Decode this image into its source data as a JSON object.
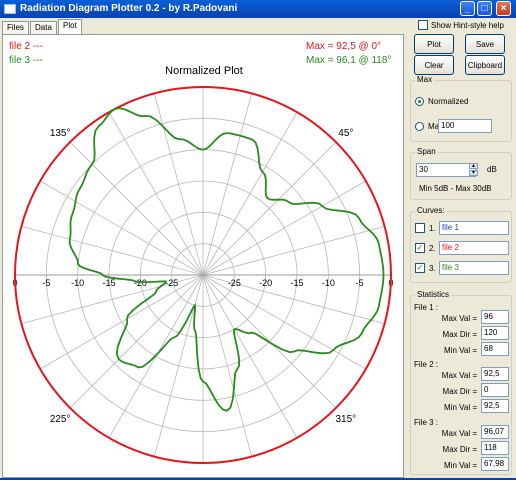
{
  "window": {
    "title": "Radiation Diagram Plotter 0.2  -  by R.Padovani",
    "icon": "app-window-icon",
    "minimize": "_",
    "maximize": "□",
    "close": "×"
  },
  "tabs": [
    {
      "label": "Files"
    },
    {
      "label": "Data"
    },
    {
      "label": "Plot"
    }
  ],
  "hint": {
    "label": "Show Hint-style help",
    "checked": false
  },
  "plot": {
    "title": "Normalized Plot",
    "legend": [
      {
        "label": "file 2   ---",
        "color": "#e8141b",
        "max_text": "Max = 92,5 @ 0°"
      },
      {
        "label": "file 3   ---",
        "color": "#2a8a1f",
        "max_text": "Max = 96,1 @ 118°"
      }
    ],
    "angle_labels": [
      "45°",
      "135°",
      "225°",
      "315°"
    ],
    "db_labels_left": [
      "0",
      "-5",
      "-10",
      "-15",
      "-20",
      "-25"
    ],
    "db_labels_right": [
      "-25",
      "-20",
      "-15",
      "-10",
      "-5",
      "0"
    ]
  },
  "chart_data": {
    "type": "polar line",
    "title": "Normalized Plot",
    "radial_axis": {
      "unit": "dB",
      "ticks": [
        0,
        -5,
        -10,
        -15,
        -20,
        -25
      ],
      "range": [
        -30,
        0
      ]
    },
    "angular_axis": {
      "unit": "deg",
      "labels": [
        45,
        135,
        225,
        315
      ],
      "grid_step": 15
    },
    "series": [
      {
        "name": "file 2",
        "color": "#e8141b",
        "points": [
          [
            0,
            0
          ],
          [
            90,
            0
          ],
          [
            180,
            0
          ],
          [
            270,
            0
          ]
        ]
      },
      {
        "name": "file 3",
        "color": "#2a8a1f",
        "points": [
          [
            0,
            -1.2
          ],
          [
            10,
            -1.5
          ],
          [
            20,
            -3.5
          ],
          [
            30,
            -8
          ],
          [
            40,
            -12
          ],
          [
            50,
            -14
          ],
          [
            60,
            -11
          ],
          [
            70,
            -7
          ],
          [
            80,
            -7
          ],
          [
            90,
            -10
          ],
          [
            100,
            -8
          ],
          [
            110,
            -3
          ],
          [
            118,
            0
          ],
          [
            125,
            -1
          ],
          [
            135,
            -5
          ],
          [
            145,
            -6
          ],
          [
            155,
            -7
          ],
          [
            165,
            -8
          ],
          [
            175,
            -10
          ],
          [
            180,
            -14
          ],
          [
            185,
            -19
          ],
          [
            190,
            -24
          ],
          [
            200,
            -22
          ],
          [
            210,
            -16
          ],
          [
            225,
            -11
          ],
          [
            235,
            -12
          ],
          [
            245,
            -19
          ],
          [
            255,
            -25
          ],
          [
            262,
            -21
          ],
          [
            270,
            -13
          ],
          [
            280,
            -8
          ],
          [
            290,
            -14
          ],
          [
            300,
            -20
          ],
          [
            310,
            -18
          ],
          [
            320,
            -11
          ],
          [
            330,
            -6
          ],
          [
            340,
            -3
          ],
          [
            350,
            -1.5
          ],
          [
            360,
            -1.2
          ]
        ]
      }
    ]
  },
  "buttons": {
    "plot": "Plot",
    "save": "Save",
    "clear": "Clear",
    "clipboard": "Clipboard"
  },
  "max_group": {
    "label": "Max",
    "normalized": "Normalized",
    "max": "Max",
    "max_value": "100",
    "selected": "Normalized"
  },
  "span_group": {
    "label": "Span",
    "value": "30",
    "unit": "dB",
    "range_text": "Min 5dB  -  Max 30dB"
  },
  "curves_group": {
    "label": "Curves:",
    "items": [
      {
        "num": "1.",
        "name": "file 1",
        "checked": false,
        "color": "#1d3ec9"
      },
      {
        "num": "2.",
        "name": "file 2",
        "checked": true,
        "color": "#e8141b"
      },
      {
        "num": "3.",
        "name": "file 3",
        "checked": true,
        "color": "#2a8a1f"
      }
    ]
  },
  "statistics": {
    "label": "Statistics",
    "files": [
      {
        "title": "File 1 :",
        "max_val_label": "Max Val =",
        "max_val": "96",
        "max_dir_label": "Max Dir =",
        "max_dir": "120",
        "min_val_label": "Min Val =",
        "min_val": "68"
      },
      {
        "title": "File 2 :",
        "max_val_label": "Max Val =",
        "max_val": "92,5",
        "max_dir_label": "Max Dir =",
        "max_dir": "0",
        "min_val_label": "Min Val =",
        "min_val": "92,5"
      },
      {
        "title": "File 3 :",
        "max_val_label": "Max Val =",
        "max_val": "96,07",
        "max_dir_label": "Max Dir =",
        "max_dir": "118",
        "min_val_label": "Min Val =",
        "min_val": "67,98"
      }
    ]
  }
}
